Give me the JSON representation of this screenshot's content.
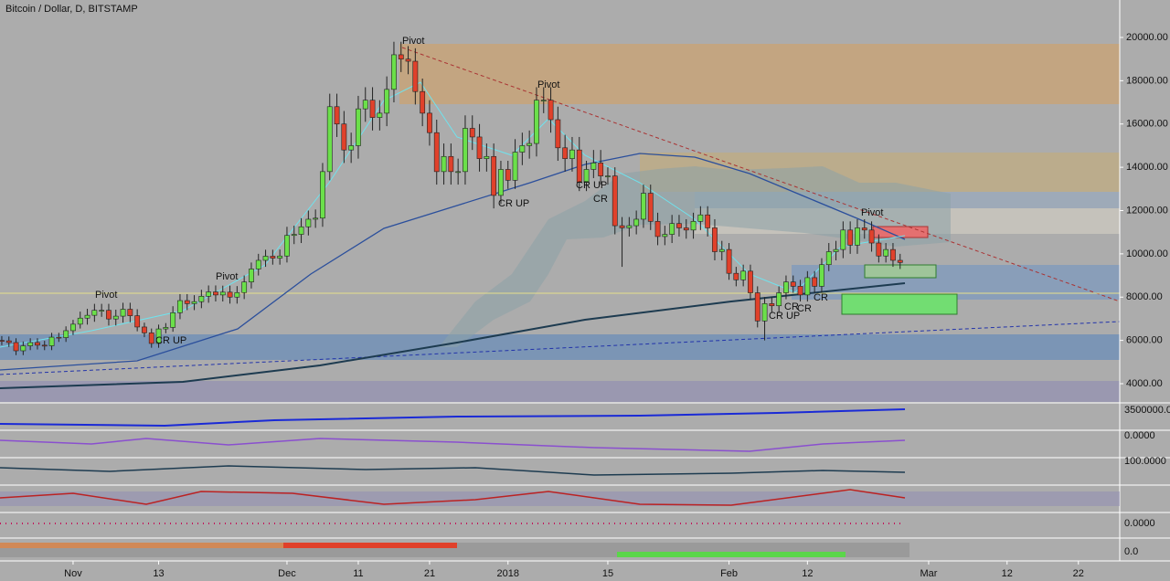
{
  "chart_data": {
    "type": "candlestick",
    "title": "Bitcoin / Dollar, D, BITSTAMP",
    "up_color": "#6be04a",
    "down_color": "#e0412b",
    "x": [
      0,
      1,
      2,
      3,
      4,
      5,
      6,
      7,
      8,
      9,
      10,
      11,
      12,
      13,
      14,
      15,
      16,
      17,
      18,
      19,
      20,
      21,
      22,
      23,
      24,
      25,
      26,
      27,
      28,
      29,
      30,
      31,
      32,
      33,
      34,
      35,
      36,
      37,
      38,
      39,
      40,
      41,
      42,
      43,
      44,
      45,
      46,
      47,
      48,
      49,
      50,
      51,
      52,
      53,
      54,
      55,
      56,
      57,
      58,
      59,
      60,
      61,
      62,
      63,
      64,
      65,
      66,
      67,
      68,
      69,
      70,
      71,
      72,
      73,
      74,
      75,
      76,
      77,
      78,
      79,
      80,
      81,
      82,
      83,
      84,
      85,
      86,
      87,
      88,
      89,
      90,
      91,
      92,
      93,
      94,
      95,
      96,
      97,
      98,
      99,
      100,
      101,
      102,
      103,
      104,
      105,
      106,
      107,
      108,
      109,
      110,
      111,
      112,
      113,
      114,
      115,
      116,
      117,
      118,
      119,
      120,
      121,
      122,
      123,
      124,
      125,
      126
    ],
    "open": [
      6000,
      5980,
      5900,
      5520,
      5750,
      5900,
      5780,
      5750,
      6150,
      6130,
      6450,
      6750,
      7030,
      7160,
      7390,
      7390,
      6990,
      7120,
      7440,
      7140,
      6620,
      6350,
      5860,
      6530,
      6600,
      7280,
      7840,
      7700,
      7790,
      8040,
      8240,
      8100,
      8230,
      8000,
      8210,
      8700,
      9300,
      9700,
      9890,
      9800,
      9900,
      10850,
      10900,
      11250,
      11600,
      11650,
      13800,
      16800,
      16000,
      14800,
      15000,
      16700,
      17100,
      16300,
      16500,
      17600,
      19200,
      19000,
      18900,
      17500,
      16500,
      15600,
      13800,
      14500,
      13800,
      13800,
      15800,
      15400,
      14400,
      14500,
      12700,
      13900,
      13400,
      14700,
      15000,
      15100,
      17100,
      17100,
      16200,
      14900,
      14400,
      14800,
      13300,
      13900,
      14200,
      13600,
      13600,
      11300,
      11200,
      11300,
      11600,
      12800,
      11500,
      10800,
      10900,
      11400,
      11200,
      11100,
      11500,
      11800,
      11200,
      10100,
      10200,
      9100,
      8800,
      9200,
      8200,
      6900,
      7700,
      7600,
      8200,
      8700,
      8500,
      8100,
      8900,
      8500,
      9500,
      10100,
      10200,
      11100,
      10400,
      11200,
      11100,
      10500,
      9900,
      10200,
      9700
    ],
    "high": [
      6200,
      6180,
      6100,
      5950,
      6100,
      6100,
      5980,
      6350,
      6350,
      6650,
      6950,
      7330,
      7460,
      7690,
      7690,
      7690,
      7420,
      7740,
      7740,
      7440,
      6820,
      6550,
      6730,
      6800,
      7580,
      8140,
      8140,
      8090,
      8340,
      8540,
      8540,
      8530,
      8530,
      8510,
      9000,
      9600,
      10000,
      10190,
      10190,
      10200,
      11250,
      11300,
      11650,
      12000,
      12050,
      14200,
      17400,
      17400,
      16600,
      15600,
      17300,
      17700,
      17700,
      17100,
      18200,
      19800,
      19800,
      19600,
      19500,
      18100,
      17100,
      16200,
      15100,
      15100,
      14400,
      16400,
      16400,
      16000,
      15100,
      15100,
      14300,
      14300,
      15300,
      15600,
      15700,
      17700,
      17700,
      17700,
      16800,
      15500,
      15400,
      15400,
      14300,
      14800,
      14800,
      14000,
      14000,
      11700,
      11700,
      12000,
      13200,
      13200,
      11900,
      11300,
      11800,
      11800,
      11600,
      11900,
      12200,
      12200,
      11600,
      10600,
      10500,
      9400,
      9500,
      9500,
      8500,
      8000,
      8000,
      8500,
      9000,
      9000,
      8800,
      9200,
      9200,
      9800,
      10500,
      10600,
      11500,
      11500,
      11600,
      11600,
      11500,
      10900,
      10500,
      10500,
      10000
    ],
    "low": [
      5780,
      5700,
      5320,
      5320,
      5550,
      5580,
      5550,
      5550,
      5930,
      5930,
      6250,
      6550,
      6730,
      6860,
      7090,
      6690,
      6690,
      6820,
      6840,
      6420,
      6150,
      5660,
      5660,
      6330,
      6400,
      6980,
      7400,
      7400,
      7490,
      7740,
      7800,
      7800,
      7700,
      7700,
      7910,
      8400,
      9000,
      9400,
      9500,
      9500,
      9600,
      10450,
      10500,
      10850,
      11200,
      11250,
      13400,
      15400,
      14200,
      14200,
      14400,
      16100,
      15700,
      15700,
      15900,
      17000,
      18400,
      18300,
      16900,
      15900,
      15000,
      13200,
      13200,
      13200,
      13200,
      13200,
      14800,
      13800,
      13800,
      12100,
      12300,
      13000,
      13000,
      14100,
      14400,
      14500,
      16500,
      15600,
      14300,
      13800,
      13800,
      12900,
      12900,
      13500,
      13200,
      13200,
      10900,
      9400,
      10800,
      10900,
      11200,
      11100,
      10400,
      10400,
      10500,
      10800,
      10700,
      10700,
      11100,
      10800,
      9700,
      9700,
      8800,
      8500,
      8500,
      7900,
      6600,
      6000,
      7300,
      7300,
      7900,
      8200,
      7800,
      7800,
      8200,
      8200,
      9200,
      9700,
      9800,
      10000,
      10000,
      10700,
      10100,
      9600,
      9600,
      9400,
      9300
    ],
    "close": [
      5980,
      5900,
      5520,
      5750,
      5900,
      5780,
      5750,
      6150,
      6130,
      6450,
      6750,
      7030,
      7160,
      7390,
      7390,
      6990,
      7120,
      7440,
      7140,
      6620,
      6350,
      5860,
      6530,
      6600,
      7280,
      7840,
      7700,
      7790,
      8040,
      8240,
      8100,
      8230,
      8000,
      8210,
      8700,
      9300,
      9700,
      9890,
      9800,
      9900,
      10850,
      10900,
      11250,
      11600,
      11650,
      13800,
      16800,
      16000,
      14800,
      15000,
      16700,
      17100,
      16300,
      16500,
      17600,
      19200,
      19000,
      18900,
      17500,
      16500,
      15600,
      13800,
      14500,
      13800,
      13800,
      15800,
      15400,
      14400,
      14500,
      12700,
      13900,
      13400,
      14700,
      15000,
      15100,
      17100,
      17100,
      16200,
      14900,
      14400,
      14800,
      13300,
      13900,
      14200,
      13600,
      13600,
      11300,
      11200,
      11300,
      11600,
      12800,
      11500,
      10800,
      10900,
      11400,
      11200,
      11100,
      11500,
      11800,
      11200,
      10100,
      10200,
      9100,
      8800,
      9200,
      8200,
      6900,
      7700,
      7600,
      8200,
      8700,
      8500,
      8100,
      8900,
      8500,
      9500,
      10100,
      10200,
      11100,
      10400,
      11200,
      11100,
      10500,
      9900,
      10200,
      9700,
      9600
    ],
    "xlim": [
      -0.25,
      156.8
    ],
    "xticks": [
      {
        "value": 10,
        "label": "Nov"
      },
      {
        "value": 22,
        "label": "13"
      },
      {
        "value": 40,
        "label": "Dec"
      },
      {
        "value": 50,
        "label": "11"
      },
      {
        "value": 60,
        "label": "21"
      },
      {
        "value": 71,
        "label": "2018"
      },
      {
        "value": 85,
        "label": "15"
      },
      {
        "value": 102,
        "label": "Feb"
      },
      {
        "value": 113,
        "label": "12"
      },
      {
        "value": 130,
        "label": "Mar"
      },
      {
        "value": 141,
        "label": "12"
      },
      {
        "value": 151,
        "label": "22"
      }
    ],
    "ylim": [
      3156,
      21730
    ],
    "yticks": [
      {
        "value": 4000,
        "label": "4000.00"
      },
      {
        "value": 6000,
        "label": "6000.00"
      },
      {
        "value": 8000,
        "label": "8000.00"
      },
      {
        "value": 10000,
        "label": "10000.00"
      },
      {
        "value": 12000,
        "label": "12000.00"
      },
      {
        "value": 14000,
        "label": "14000.00"
      },
      {
        "value": 16000,
        "label": "16000.00"
      },
      {
        "value": 18000,
        "label": "18000.00"
      },
      {
        "value": 20000,
        "label": "20000.00"
      }
    ],
    "grid": false,
    "annotations": [
      "Pivot",
      "Pivot",
      "Pivot",
      "Pivot",
      "Pivot",
      "CR UP",
      "CR UP",
      "CR UP",
      "CR UP",
      "CR",
      "CR",
      "CR",
      "CR"
    ],
    "panel_labels": [
      "3500000.0",
      "0.0000",
      "100.0000",
      "0.0000",
      "0.0"
    ]
  }
}
